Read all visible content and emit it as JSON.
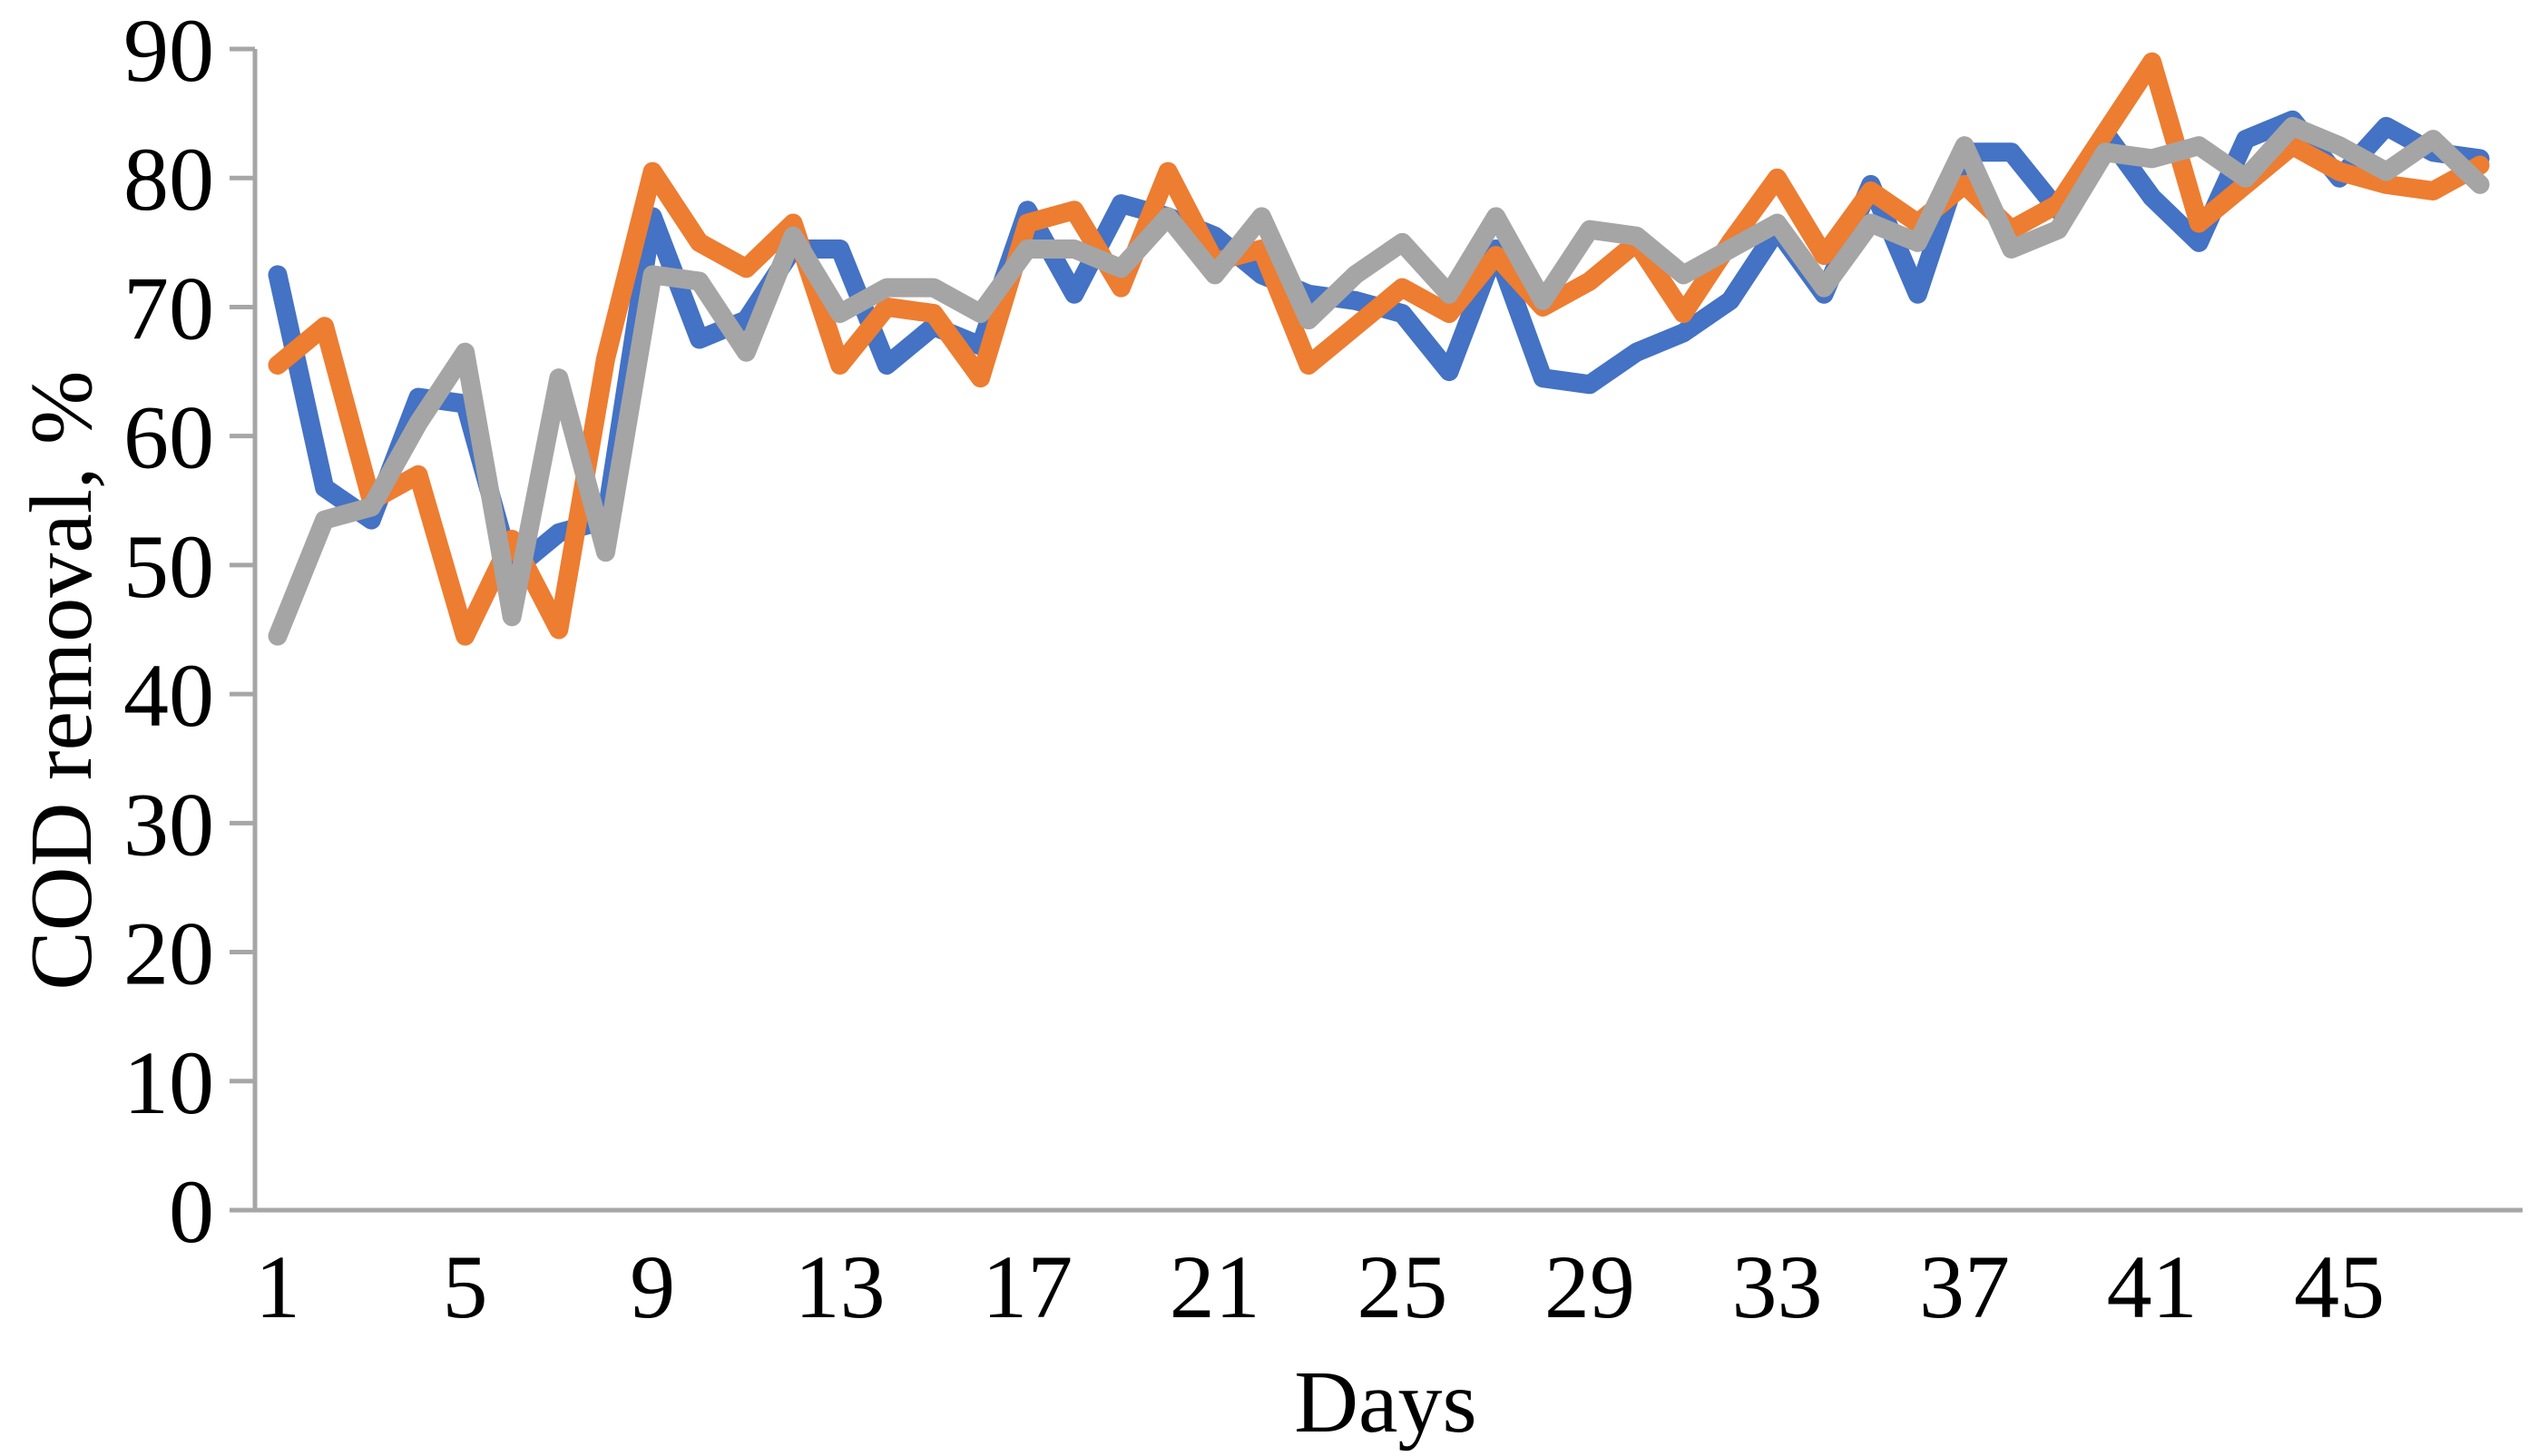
{
  "chart_data": {
    "type": "line",
    "title": "",
    "xlabel": "Days",
    "ylabel": "COD removal, %",
    "ylim": [
      0,
      90
    ],
    "yticks": [
      0,
      10,
      20,
      30,
      40,
      50,
      60,
      70,
      80,
      90
    ],
    "xtick_labels": [
      1,
      5,
      9,
      13,
      17,
      21,
      25,
      29,
      33,
      37,
      41,
      45
    ],
    "grid": "off",
    "legend": "none",
    "axis_color": "#A6A6A6",
    "x": [
      1,
      2,
      3,
      4,
      5,
      6,
      7,
      8,
      9,
      10,
      11,
      12,
      13,
      14,
      15,
      16,
      17,
      18,
      19,
      20,
      21,
      22,
      23,
      24,
      25,
      26,
      27,
      28,
      29,
      30,
      31,
      32,
      33,
      34,
      35,
      36,
      37,
      38,
      39,
      40,
      41,
      42,
      43,
      44,
      45,
      46,
      47,
      48
    ],
    "series": [
      {
        "key": "blue",
        "color": "#4472C4",
        "values": [
          72.5,
          56,
          53.5,
          63,
          62.5,
          49.5,
          52.5,
          53.5,
          77,
          67.5,
          69,
          74.5,
          74.5,
          65.5,
          68.5,
          67,
          77.5,
          71,
          78,
          77,
          75.5,
          72.5,
          71,
          70.5,
          69.5,
          65,
          74.5,
          64.5,
          64,
          66.5,
          68,
          70.5,
          76,
          71,
          79.5,
          71,
          82,
          82,
          77.5,
          83.5,
          78.5,
          75,
          83,
          84.5,
          80,
          84,
          82,
          81.5
        ]
      },
      {
        "key": "orange",
        "color": "#ED7D31",
        "values": [
          65.5,
          68.5,
          55,
          57,
          44.5,
          52,
          45,
          66,
          80.5,
          75,
          73,
          76.5,
          65.5,
          70,
          69.5,
          64.5,
          76.5,
          77.5,
          71.5,
          80.5,
          73.5,
          74.5,
          65.5,
          68.5,
          71.5,
          69.5,
          74,
          70,
          72,
          75,
          69.5,
          75,
          80,
          74,
          79,
          76.5,
          79.5,
          76,
          78,
          83.5,
          89,
          76.5,
          79.5,
          82.5,
          80.5,
          79.5,
          79,
          81
        ]
      },
      {
        "key": "gray",
        "color": "#A5A5A5",
        "values": [
          44.5,
          53.5,
          54.5,
          61,
          66.5,
          46,
          64.5,
          51,
          72.5,
          72,
          66.5,
          75.5,
          69.5,
          71.5,
          71.5,
          69.5,
          74.5,
          74.5,
          73,
          77,
          72.5,
          77,
          69,
          72.5,
          75,
          71,
          77,
          70.5,
          76,
          75.5,
          72.5,
          74.5,
          76.5,
          71.5,
          76.5,
          75,
          82.5,
          74.5,
          76,
          82,
          81.5,
          82.5,
          80,
          84,
          82.5,
          80.5,
          83,
          79.5
        ]
      }
    ]
  }
}
